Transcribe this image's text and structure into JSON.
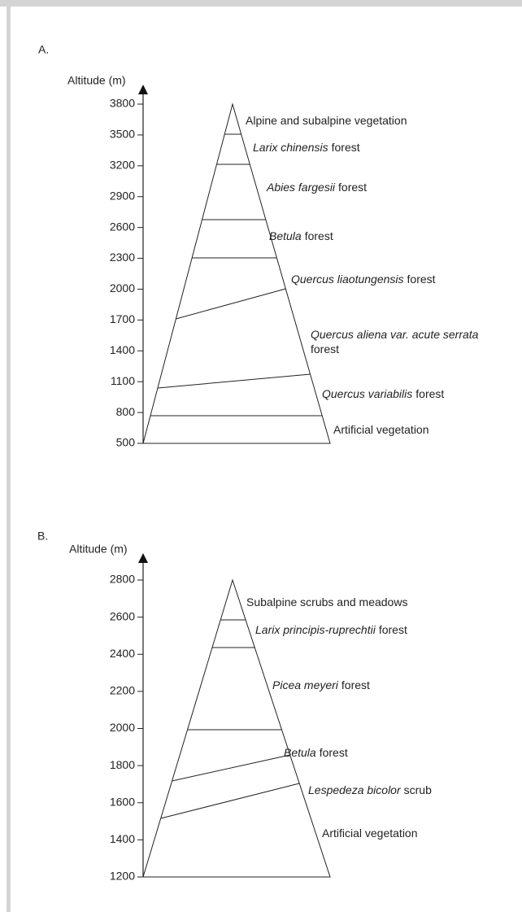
{
  "panels": [
    {
      "label": "A.",
      "axis_label": "Altitude (m)",
      "ticks": [
        3800,
        3500,
        3200,
        2900,
        2600,
        2300,
        2000,
        1700,
        1400,
        1100,
        800,
        500
      ],
      "zones": [
        {
          "plain": "Alpine and subalpine vegetation"
        },
        {
          "italic": "Larix chinensis",
          "plain": "forest"
        },
        {
          "italic": "Abies fargesii",
          "plain": "forest"
        },
        {
          "italic": "Betula",
          "plain": "forest"
        },
        {
          "italic": "Quercus liaotungensis",
          "plain": "forest"
        },
        {
          "italic": "Quercus aliena var. acute serrata",
          "plain": "forest"
        },
        {
          "italic": "Quercus variabilis",
          "plain": "forest"
        },
        {
          "plain": "Artificial vegetation"
        }
      ]
    },
    {
      "label": "B.",
      "axis_label": "Altitude (m)",
      "ticks": [
        2800,
        2600,
        2400,
        2200,
        2000,
        1800,
        1600,
        1400,
        1200
      ],
      "zones": [
        {
          "plain": "Subalpine scrubs and meadows"
        },
        {
          "italic": "Larix principis-ruprechtii",
          "plain": "forest"
        },
        {
          "italic": "Picea meyeri",
          "plain": "forest"
        },
        {
          "italic": "Betula",
          "plain": "forest"
        },
        {
          "italic": "Lespedeza bicolor",
          "plain": "scrub"
        },
        {
          "plain": "Artificial vegetation"
        }
      ]
    }
  ]
}
